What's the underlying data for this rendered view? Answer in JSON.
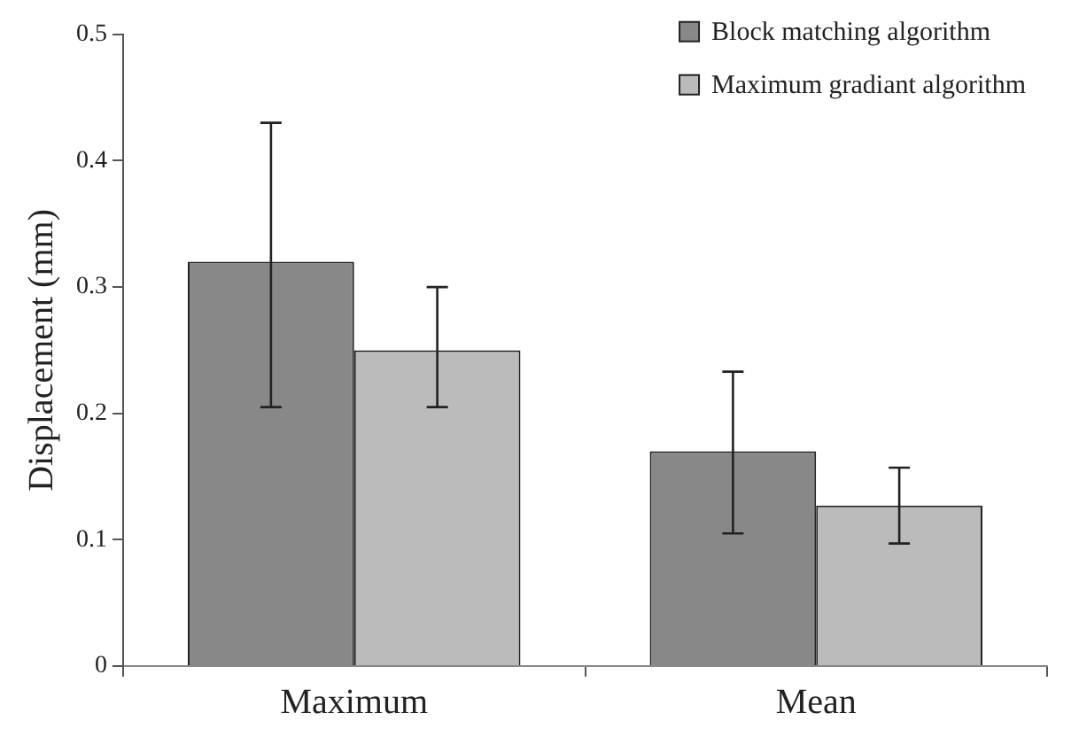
{
  "chart_data": {
    "type": "bar",
    "ylabel": "Displacement (mm)",
    "categories": [
      "Maximum",
      "Mean"
    ],
    "series": [
      {
        "name": "Block matching algorithm",
        "color": "#888888",
        "values": [
          0.32,
          0.17
        ],
        "errors": [
          [
            0.205,
            0.43
          ],
          [
            0.105,
            0.233
          ]
        ]
      },
      {
        "name": "Maximum gradiant algorithm",
        "color": "#bbbbbb",
        "values": [
          0.25,
          0.127
        ],
        "errors": [
          [
            0.205,
            0.3
          ],
          [
            0.097,
            0.157
          ]
        ]
      }
    ],
    "ylim": [
      0,
      0.5
    ],
    "yticks": [
      0,
      0.1,
      0.2,
      0.3,
      0.4,
      0.5
    ],
    "grid": false,
    "legend": "top right"
  }
}
